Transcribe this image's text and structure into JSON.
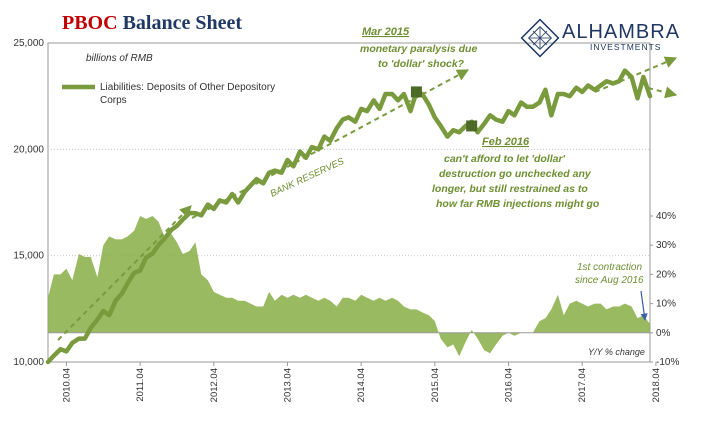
{
  "chart_data": {
    "type": "line+area",
    "title_part1": "PBOC",
    "title_part2": "Balance Sheet",
    "unit_label": "billions of RMB",
    "legend_label_line1": "Liabilities: Deposits of Other Depository",
    "legend_label_line2": "Corps",
    "left_axis": {
      "min": 10000,
      "max": 25000,
      "ticks": [
        "10,000",
        "15,000",
        "20,000",
        "25,000"
      ]
    },
    "right_axis": {
      "min": -10,
      "max": 40,
      "ticks": [
        "-10%",
        "0%",
        "10%",
        "20%",
        "30%",
        "40%"
      ],
      "label": "Y/Y % change"
    },
    "x_ticks": [
      "2010.04",
      "2011.04",
      "2012.04",
      "2013.04",
      "2014.04",
      "2015.04",
      "2016.04",
      "2017.04",
      "2018.04"
    ],
    "x_range": [
      2010.0,
      2018.17
    ],
    "series": [
      {
        "name": "Liabilities: Deposits of Other Depository Corps",
        "kind": "line",
        "axis": "left",
        "x": [
          2010.0,
          2010.08,
          2010.17,
          2010.25,
          2010.33,
          2010.42,
          2010.5,
          2010.58,
          2010.67,
          2010.75,
          2010.83,
          2010.92,
          2011.0,
          2011.08,
          2011.17,
          2011.25,
          2011.33,
          2011.42,
          2011.5,
          2011.58,
          2011.67,
          2011.75,
          2011.83,
          2011.92,
          2012.0,
          2012.08,
          2012.17,
          2012.25,
          2012.33,
          2012.42,
          2012.5,
          2012.58,
          2012.67,
          2012.75,
          2012.83,
          2012.92,
          2013.0,
          2013.08,
          2013.17,
          2013.25,
          2013.33,
          2013.42,
          2013.5,
          2013.58,
          2013.67,
          2013.75,
          2013.83,
          2013.92,
          2014.0,
          2014.08,
          2014.17,
          2014.25,
          2014.33,
          2014.42,
          2014.5,
          2014.58,
          2014.67,
          2014.75,
          2014.83,
          2014.92,
          2015.0,
          2015.08,
          2015.17,
          2015.25,
          2015.33,
          2015.42,
          2015.5,
          2015.58,
          2015.67,
          2015.75,
          2015.83,
          2015.92,
          2016.0,
          2016.08,
          2016.17,
          2016.25,
          2016.33,
          2016.42,
          2016.5,
          2016.58,
          2016.67,
          2016.75,
          2016.83,
          2016.92,
          2017.0,
          2017.08,
          2017.17,
          2017.25,
          2017.33,
          2017.42,
          2017.5,
          2017.58,
          2017.67,
          2017.75,
          2017.83,
          2017.92,
          2018.0,
          2018.08,
          2018.17
        ],
        "values": [
          10000,
          10300,
          10600,
          10500,
          10900,
          11100,
          11100,
          11600,
          12000,
          12400,
          12200,
          12900,
          13200,
          13700,
          14200,
          14300,
          14900,
          15100,
          15500,
          15800,
          16200,
          16400,
          16700,
          17000,
          17000,
          16900,
          17400,
          17200,
          17600,
          17500,
          17900,
          17500,
          18000,
          18300,
          18600,
          18400,
          18900,
          19000,
          18900,
          19500,
          19200,
          19900,
          19600,
          20100,
          20000,
          20600,
          20400,
          21000,
          21400,
          21500,
          21300,
          21900,
          21800,
          22300,
          21900,
          22600,
          22600,
          22300,
          22600,
          21800,
          22700,
          22600,
          22100,
          21500,
          21100,
          20600,
          20900,
          20800,
          21100,
          21300,
          20800,
          21200,
          21600,
          21400,
          21300,
          21800,
          21600,
          22200,
          22000,
          22000,
          22200,
          22800,
          21600,
          22600,
          22600,
          22500,
          22900,
          22700,
          23000,
          22800,
          23000,
          23200,
          23100,
          23200,
          23700,
          23400,
          22400,
          23400,
          22500
        ]
      },
      {
        "name": "Y/Y % change",
        "kind": "area",
        "axis": "right",
        "x": [
          2010.0,
          2010.08,
          2010.17,
          2010.25,
          2010.33,
          2010.42,
          2010.5,
          2010.58,
          2010.67,
          2010.75,
          2010.83,
          2010.92,
          2011.0,
          2011.08,
          2011.17,
          2011.25,
          2011.33,
          2011.42,
          2011.5,
          2011.58,
          2011.67,
          2011.75,
          2011.83,
          2011.92,
          2012.0,
          2012.08,
          2012.17,
          2012.25,
          2012.33,
          2012.42,
          2012.5,
          2012.58,
          2012.67,
          2012.75,
          2012.83,
          2012.92,
          2013.0,
          2013.08,
          2013.17,
          2013.25,
          2013.33,
          2013.42,
          2013.5,
          2013.58,
          2013.67,
          2013.75,
          2013.83,
          2013.92,
          2014.0,
          2014.08,
          2014.17,
          2014.25,
          2014.33,
          2014.42,
          2014.5,
          2014.58,
          2014.67,
          2014.75,
          2014.83,
          2014.92,
          2015.0,
          2015.08,
          2015.17,
          2015.25,
          2015.33,
          2015.42,
          2015.5,
          2015.58,
          2015.67,
          2015.75,
          2015.83,
          2015.92,
          2016.0,
          2016.08,
          2016.17,
          2016.25,
          2016.33,
          2016.42,
          2016.5,
          2016.58,
          2016.67,
          2016.75,
          2016.83,
          2016.92,
          2017.0,
          2017.08,
          2017.17,
          2017.25,
          2017.33,
          2017.42,
          2017.5,
          2017.58,
          2017.67,
          2017.75,
          2017.83,
          2017.92,
          2018.0,
          2018.08,
          2018.17
        ],
        "values": [
          12,
          20,
          20,
          22,
          18,
          27,
          26,
          26,
          19,
          30,
          33,
          32,
          32,
          33,
          35,
          40,
          39,
          40,
          38,
          33,
          34,
          31,
          27,
          28,
          31,
          20,
          18,
          14,
          13,
          12,
          12,
          11,
          11,
          10,
          9,
          9,
          14,
          11,
          13,
          12,
          13,
          12,
          13,
          12,
          11,
          12,
          11,
          9,
          12,
          12,
          11,
          13,
          12,
          11,
          12,
          11,
          12,
          11,
          9,
          8,
          8,
          7,
          6,
          4,
          -2,
          -5,
          -4,
          -8,
          -3,
          1,
          -2,
          -6,
          -7,
          -4,
          -1,
          0,
          -1,
          0,
          0,
          0,
          4,
          5,
          8,
          13,
          6,
          10,
          11,
          10,
          9,
          10,
          10,
          8,
          9,
          9,
          10,
          9,
          5,
          6,
          3
        ]
      }
    ],
    "annotations": {
      "mar2015_title": "Mar 2015",
      "mar2015_line1": "monetary paralysis due",
      "mar2015_line2": "to 'dollar' shock?",
      "feb2016_title": "Feb 2016",
      "feb2016_line1": "can't afford to let 'dollar'",
      "feb2016_line2": "destruction go unchecked any",
      "feb2016_line3": "longer, but still restrained as to",
      "feb2016_line4": "how far RMB injections might go",
      "bank_reserves": "BANK RESERVES",
      "contraction_line1": "1st contraction",
      "contraction_line2": "since Aug 2016"
    },
    "markers": [
      {
        "x": 2015.0,
        "y": 22700,
        "label": "Mar 2015"
      },
      {
        "x": 2015.75,
        "y": 21100,
        "label": "Feb 2016"
      }
    ],
    "grid": true,
    "legend_position": "top-left",
    "colors": {
      "line": "#7a9a3e",
      "area": "#8bb04a",
      "annotation_text": "#6e8f32",
      "title_red": "#c00000",
      "title_blue": "#1f3864",
      "arrow_blue": "#3b5ea8"
    }
  },
  "logo": {
    "brand": "ALHAMBRA",
    "tagline": "INVESTMENTS"
  }
}
